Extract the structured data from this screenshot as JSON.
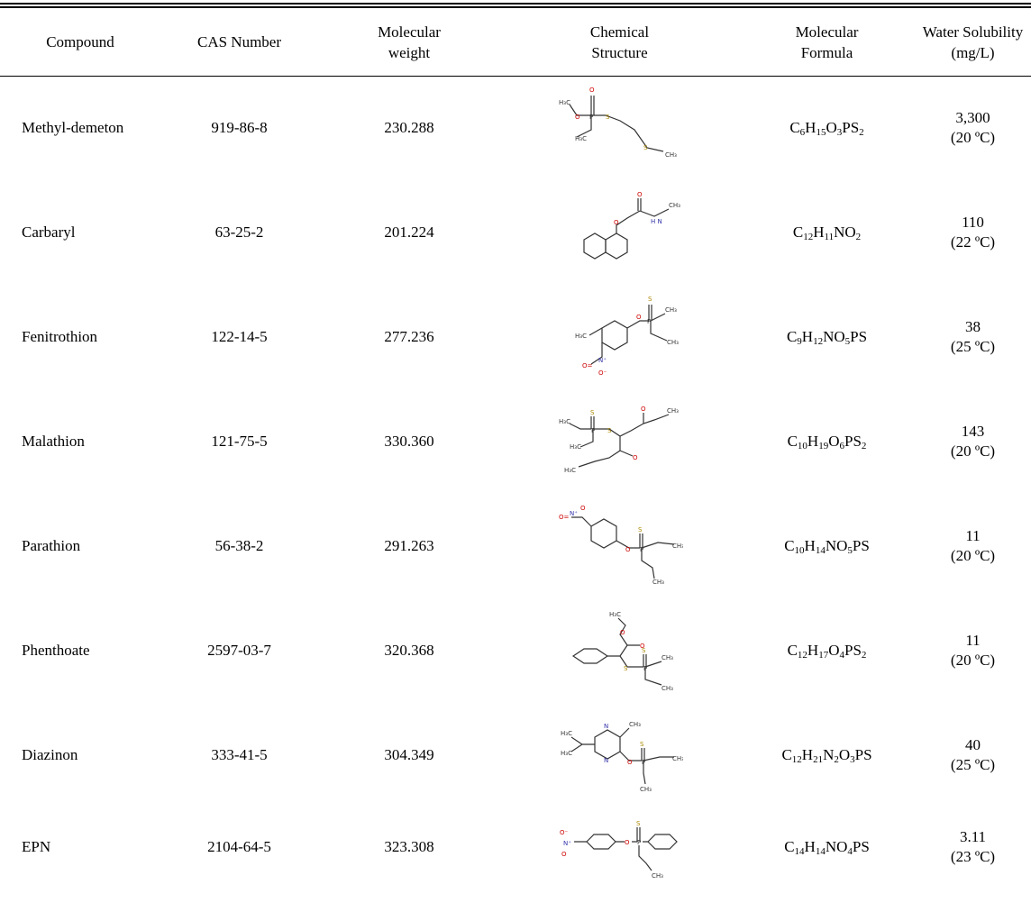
{
  "columns": [
    {
      "l1": "Compound",
      "l2": ""
    },
    {
      "l1": "CAS Number",
      "l2": ""
    },
    {
      "l1": "Molecular",
      "l2": "weight"
    },
    {
      "l1": "Chemical",
      "l2": "Structure"
    },
    {
      "l1": "Molecular",
      "l2": "Formula"
    },
    {
      "l1": "Water Solubility",
      "l2": "(mg/L)"
    }
  ],
  "rows": [
    {
      "name": "Methyl-demeton",
      "cas": "919-86-8",
      "mw": "230.288",
      "formula": [
        [
          "C",
          ""
        ],
        [
          "6",
          "sub"
        ],
        [
          "H",
          ""
        ],
        [
          "15",
          "sub"
        ],
        [
          "O",
          ""
        ],
        [
          "3",
          "sub"
        ],
        [
          "PS",
          ""
        ],
        [
          "2",
          "sub"
        ]
      ],
      "sol_value": "3,300",
      "sol_temp": "(20 ºC)"
    },
    {
      "name": "Carbaryl",
      "cas": "63-25-2",
      "mw": "201.224",
      "formula": [
        [
          "C",
          ""
        ],
        [
          "12",
          "sub"
        ],
        [
          "H",
          ""
        ],
        [
          "11",
          "sub"
        ],
        [
          "NO",
          ""
        ],
        [
          "2",
          "sub"
        ]
      ],
      "sol_value": "110",
      "sol_temp": "(22 ºC)"
    },
    {
      "name": "Fenitrothion",
      "cas": "122-14-5",
      "mw": "277.236",
      "formula": [
        [
          "C",
          ""
        ],
        [
          "9",
          "sub"
        ],
        [
          "H",
          ""
        ],
        [
          "12",
          "sub"
        ],
        [
          "NO",
          ""
        ],
        [
          "5",
          "sub"
        ],
        [
          "PS",
          ""
        ]
      ],
      "sol_value": "38",
      "sol_temp": "(25 ºC)"
    },
    {
      "name": "Malathion",
      "cas": "121-75-5",
      "mw": "330.360",
      "formula": [
        [
          "C",
          ""
        ],
        [
          "10",
          "sub"
        ],
        [
          "H",
          ""
        ],
        [
          "19",
          "sub"
        ],
        [
          "O",
          ""
        ],
        [
          "6",
          "sub"
        ],
        [
          "PS",
          ""
        ],
        [
          "2",
          "sub"
        ]
      ],
      "sol_value": "143",
      "sol_temp": "(20 ºC)"
    },
    {
      "name": "Parathion",
      "cas": "56-38-2",
      "mw": "291.263",
      "formula": [
        [
          "C",
          ""
        ],
        [
          "10",
          "sub"
        ],
        [
          "H",
          ""
        ],
        [
          "14",
          "sub"
        ],
        [
          "NO",
          ""
        ],
        [
          "5",
          "sub"
        ],
        [
          "PS",
          ""
        ]
      ],
      "sol_value": "11",
      "sol_temp": "(20 ºC)"
    },
    {
      "name": "Phenthoate",
      "cas": "2597-03-7",
      "mw": "320.368",
      "formula": [
        [
          "C",
          ""
        ],
        [
          "12",
          "sub"
        ],
        [
          "H",
          ""
        ],
        [
          "17",
          "sub"
        ],
        [
          "O",
          ""
        ],
        [
          "4",
          "sub"
        ],
        [
          "PS",
          ""
        ],
        [
          "2",
          "sub"
        ]
      ],
      "sol_value": "11",
      "sol_temp": "(20 ºC)"
    },
    {
      "name": "Diazinon",
      "cas": "333-41-5",
      "mw": "304.349",
      "formula": [
        [
          "C",
          ""
        ],
        [
          "12",
          "sub"
        ],
        [
          "H",
          ""
        ],
        [
          "21",
          "sub"
        ],
        [
          "N",
          ""
        ],
        [
          "2",
          "sub"
        ],
        [
          "O",
          ""
        ],
        [
          "3",
          "sub"
        ],
        [
          "PS",
          ""
        ]
      ],
      "sol_value": "40",
      "sol_temp": "(25 ºC)"
    },
    {
      "name": "EPN",
      "cas": "2104-64-5",
      "mw": "323.308",
      "formula": [
        [
          "C",
          ""
        ],
        [
          "14",
          "sub"
        ],
        [
          "H",
          ""
        ],
        [
          "14",
          "sub"
        ],
        [
          "NO",
          ""
        ],
        [
          "4",
          "sub"
        ],
        [
          "PS",
          ""
        ]
      ],
      "sol_value": "3.11",
      "sol_temp": "(23 ºC)"
    }
  ]
}
